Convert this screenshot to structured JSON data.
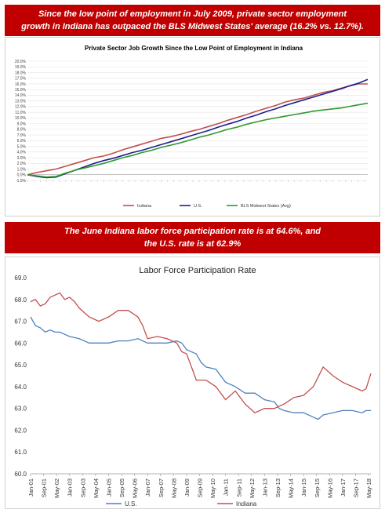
{
  "banners": {
    "top_line1": "Since the low point of employment in July 2009, private sector employment",
    "top_line2": "growth in Indiana has outpaced the BLS Midwest States' average (16.2% vs. 12.7%).",
    "mid_line1": "The June Indiana labor force participation rate is at 64.6%, and",
    "mid_line2": "the U.S. rate is at 62.9%"
  },
  "colors": {
    "banner_red": "#c00000",
    "indiana": "#c0504d",
    "us_chart1": "#1f1f8f",
    "midwest": "#2e9a2e",
    "us_chart2": "#4f81bd",
    "indiana_chart2": "#c0504d"
  },
  "chart_data": [
    {
      "type": "line",
      "title": "Private Sector Job Growth Since the Low Point of Employment in Indiana",
      "ylim": [
        -1.0,
        20.0
      ],
      "yticks": [
        "-1.0%",
        "0.0%",
        "1.0%",
        "2.0%",
        "3.0%",
        "4.0%",
        "5.0%",
        "6.0%",
        "7.0%",
        "8.0%",
        "9.0%",
        "10.0%",
        "11.0%",
        "12.0%",
        "13.0%",
        "14.0%",
        "15.0%",
        "16.0%",
        "17.0%",
        "18.0%",
        "19.0%",
        "20.0%"
      ],
      "x": [
        0,
        3,
        6,
        9,
        12,
        15,
        18,
        21,
        24,
        27,
        30,
        33,
        36,
        39,
        42,
        45,
        48,
        51,
        54,
        57,
        60,
        63,
        66,
        69,
        72,
        75,
        78,
        81,
        84,
        87,
        90,
        93,
        96,
        99,
        101,
        104,
        107
      ],
      "xlim": [
        0,
        107
      ],
      "series": [
        {
          "name": "Indiana",
          "values": [
            0.0,
            0.4,
            0.7,
            1.0,
            1.5,
            2.0,
            2.5,
            3.0,
            3.3,
            3.8,
            4.4,
            4.9,
            5.4,
            5.9,
            6.4,
            6.7,
            7.1,
            7.6,
            8.0,
            8.5,
            9.0,
            9.6,
            10.1,
            10.6,
            11.2,
            11.7,
            12.2,
            12.8,
            13.2,
            13.5,
            14.0,
            14.5,
            14.8,
            15.3,
            15.6,
            16.0,
            16.0
          ]
        },
        {
          "name": "U.S.",
          "values": [
            0.0,
            -0.3,
            -0.5,
            -0.4,
            0.2,
            0.8,
            1.4,
            2.0,
            2.5,
            2.9,
            3.4,
            3.9,
            4.3,
            4.8,
            5.3,
            5.8,
            6.3,
            6.8,
            7.3,
            7.8,
            8.4,
            8.9,
            9.4,
            10.0,
            10.5,
            11.1,
            11.6,
            12.2,
            12.7,
            13.2,
            13.7,
            14.2,
            14.7,
            15.2,
            15.6,
            16.1,
            16.8
          ]
        },
        {
          "name": "BLS Midwest States (Avg)",
          "values": [
            0.0,
            -0.2,
            -0.4,
            -0.3,
            0.3,
            0.8,
            1.2,
            1.6,
            2.0,
            2.5,
            3.0,
            3.4,
            3.9,
            4.3,
            4.8,
            5.2,
            5.6,
            6.1,
            6.6,
            7.0,
            7.5,
            8.0,
            8.4,
            8.9,
            9.3,
            9.7,
            10.0,
            10.3,
            10.6,
            10.9,
            11.2,
            11.4,
            11.6,
            11.8,
            12.0,
            12.3,
            12.6
          ]
        }
      ]
    },
    {
      "type": "line",
      "title": "Labor Force Participation Rate",
      "ylim": [
        60.0,
        69.0
      ],
      "yticks": [
        "60.0",
        "61.0",
        "62.0",
        "63.0",
        "64.0",
        "65.0",
        "66.0",
        "67.0",
        "68.0",
        "69.0"
      ],
      "xlim": [
        2001.0,
        2018.45
      ],
      "xticks": [
        {
          "label": "Jan-01",
          "x": 2001.0
        },
        {
          "label": "Sep-01",
          "x": 2001.667
        },
        {
          "label": "May-02",
          "x": 2002.333
        },
        {
          "label": "Jan-03",
          "x": 2003.0
        },
        {
          "label": "Sep-03",
          "x": 2003.667
        },
        {
          "label": "May-04",
          "x": 2004.333
        },
        {
          "label": "Jan-05",
          "x": 2005.0
        },
        {
          "label": "Sep-05",
          "x": 2005.667
        },
        {
          "label": "May-06",
          "x": 2006.333
        },
        {
          "label": "Jan-07",
          "x": 2007.0
        },
        {
          "label": "Sep-07",
          "x": 2007.667
        },
        {
          "label": "May-08",
          "x": 2008.333
        },
        {
          "label": "Jan-09",
          "x": 2009.0
        },
        {
          "label": "Sep-09",
          "x": 2009.667
        },
        {
          "label": "May-10",
          "x": 2010.333
        },
        {
          "label": "Jan-11",
          "x": 2011.0
        },
        {
          "label": "Sep-11",
          "x": 2011.667
        },
        {
          "label": "May-12",
          "x": 2012.333
        },
        {
          "label": "Jan-13",
          "x": 2013.0
        },
        {
          "label": "Sep-13",
          "x": 2013.667
        },
        {
          "label": "May-14",
          "x": 2014.333
        },
        {
          "label": "Jan-15",
          "x": 2015.0
        },
        {
          "label": "Sep-15",
          "x": 2015.667
        },
        {
          "label": "May-16",
          "x": 2016.333
        },
        {
          "label": "Jan-17",
          "x": 2017.0
        },
        {
          "label": "Sep-17",
          "x": 2017.667
        },
        {
          "label": "May-18",
          "x": 2018.333
        }
      ],
      "series": [
        {
          "name": "U.S.",
          "points": [
            [
              2001.0,
              67.2
            ],
            [
              2001.25,
              66.8
            ],
            [
              2001.5,
              66.7
            ],
            [
              2001.75,
              66.5
            ],
            [
              2002.0,
              66.6
            ],
            [
              2002.25,
              66.5
            ],
            [
              2002.5,
              66.5
            ],
            [
              2002.75,
              66.4
            ],
            [
              2003.0,
              66.3
            ],
            [
              2003.5,
              66.2
            ],
            [
              2004.0,
              66.0
            ],
            [
              2004.5,
              66.0
            ],
            [
              2005.0,
              66.0
            ],
            [
              2005.5,
              66.1
            ],
            [
              2006.0,
              66.1
            ],
            [
              2006.5,
              66.2
            ],
            [
              2007.0,
              66.0
            ],
            [
              2007.5,
              66.0
            ],
            [
              2008.0,
              66.0
            ],
            [
              2008.5,
              66.1
            ],
            [
              2008.75,
              66.0
            ],
            [
              2009.0,
              65.7
            ],
            [
              2009.5,
              65.5
            ],
            [
              2009.75,
              65.1
            ],
            [
              2010.0,
              64.9
            ],
            [
              2010.5,
              64.8
            ],
            [
              2011.0,
              64.2
            ],
            [
              2011.5,
              64.0
            ],
            [
              2012.0,
              63.7
            ],
            [
              2012.5,
              63.7
            ],
            [
              2013.0,
              63.4
            ],
            [
              2013.5,
              63.3
            ],
            [
              2013.75,
              63.0
            ],
            [
              2014.0,
              62.9
            ],
            [
              2014.5,
              62.8
            ],
            [
              2015.0,
              62.8
            ],
            [
              2015.5,
              62.6
            ],
            [
              2015.75,
              62.5
            ],
            [
              2016.0,
              62.7
            ],
            [
              2016.5,
              62.8
            ],
            [
              2017.0,
              62.9
            ],
            [
              2017.5,
              62.9
            ],
            [
              2018.0,
              62.8
            ],
            [
              2018.2,
              62.9
            ],
            [
              2018.45,
              62.9
            ]
          ]
        },
        {
          "name": "Indiana",
          "points": [
            [
              2001.0,
              67.9
            ],
            [
              2001.25,
              68.0
            ],
            [
              2001.5,
              67.7
            ],
            [
              2001.75,
              67.8
            ],
            [
              2002.0,
              68.1
            ],
            [
              2002.25,
              68.2
            ],
            [
              2002.5,
              68.3
            ],
            [
              2002.75,
              68.0
            ],
            [
              2003.0,
              68.1
            ],
            [
              2003.25,
              67.9
            ],
            [
              2003.5,
              67.6
            ],
            [
              2004.0,
              67.2
            ],
            [
              2004.5,
              67.0
            ],
            [
              2005.0,
              67.2
            ],
            [
              2005.5,
              67.5
            ],
            [
              2006.0,
              67.5
            ],
            [
              2006.5,
              67.2
            ],
            [
              2006.75,
              66.8
            ],
            [
              2007.0,
              66.2
            ],
            [
              2007.5,
              66.3
            ],
            [
              2008.0,
              66.2
            ],
            [
              2008.5,
              66.0
            ],
            [
              2008.75,
              65.6
            ],
            [
              2009.0,
              65.5
            ],
            [
              2009.5,
              64.3
            ],
            [
              2010.0,
              64.3
            ],
            [
              2010.5,
              64.0
            ],
            [
              2011.0,
              63.4
            ],
            [
              2011.5,
              63.8
            ],
            [
              2012.0,
              63.2
            ],
            [
              2012.5,
              62.8
            ],
            [
              2013.0,
              63.0
            ],
            [
              2013.5,
              63.0
            ],
            [
              2014.0,
              63.2
            ],
            [
              2014.5,
              63.5
            ],
            [
              2015.0,
              63.6
            ],
            [
              2015.5,
              64.0
            ],
            [
              2016.0,
              64.9
            ],
            [
              2016.5,
              64.5
            ],
            [
              2017.0,
              64.2
            ],
            [
              2017.5,
              64.0
            ],
            [
              2018.0,
              63.8
            ],
            [
              2018.2,
              63.9
            ],
            [
              2018.45,
              64.6
            ]
          ]
        }
      ]
    }
  ]
}
